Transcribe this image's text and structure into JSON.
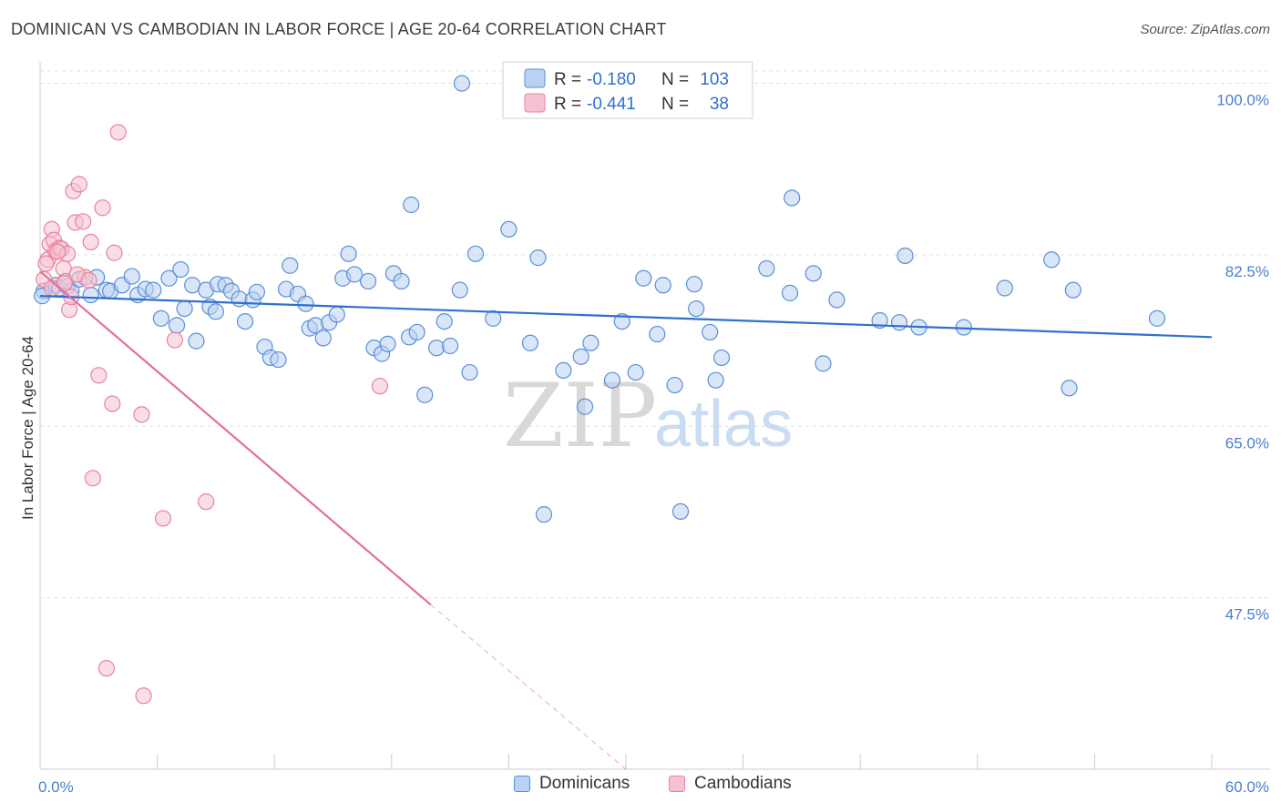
{
  "title": "DOMINICAN VS CAMBODIAN IN LABOR FORCE | AGE 20-64 CORRELATION CHART",
  "source": "Source: ZipAtlas.com",
  "watermark": {
    "zip": "ZIP",
    "atlas": "atlas"
  },
  "colors": {
    "blue": "#5b8fd6",
    "blue_fill": "#b9d1f3",
    "blue_line": "#2f6fd0",
    "pink": "#e8829f",
    "pink_fill": "#f6c2d2",
    "pink_line": "#e0709a",
    "tick_text": "#4a7fd0",
    "grid": "#e0e0e0"
  },
  "legend": {
    "rows": [
      {
        "r_label": "R =",
        "r_value": "-0.180",
        "n_label": "N =",
        "n_value": "103"
      },
      {
        "r_label": "R =",
        "r_value": "-0.441",
        "n_label": "N =",
        "n_value": "38"
      }
    ]
  },
  "bottom_legend": {
    "dominicans": "Dominicans",
    "cambodians": "Cambodians"
  },
  "chart_data": {
    "type": "scatter",
    "ylabel": "In Labor Force | Age 20-64",
    "xlim": [
      0,
      60
    ],
    "ylim": [
      30,
      102
    ],
    "x_tick_labels": [
      {
        "value": 0,
        "label": "0.0%"
      },
      {
        "value": 60,
        "label": "60.0%"
      }
    ],
    "y_tick_labels": [
      {
        "value": 100,
        "label": "100.0%"
      },
      {
        "value": 82.5,
        "label": "82.5%"
      },
      {
        "value": 65,
        "label": "65.0%"
      },
      {
        "value": 47.5,
        "label": "47.5%"
      }
    ],
    "legend_placement": "top-center",
    "series": [
      {
        "name": "Dominicans",
        "trend": {
          "x0": 0,
          "y0": 78.3,
          "x1": 60,
          "y1": 74.1
        },
        "points": [
          [
            0.2,
            78.8
          ],
          [
            0.8,
            79.4
          ],
          [
            1.0,
            79.1
          ],
          [
            1.4,
            79.3
          ],
          [
            1.6,
            78.8
          ],
          [
            2.0,
            80.0
          ],
          [
            2.6,
            78.4
          ],
          [
            2.9,
            80.2
          ],
          [
            3.4,
            78.9
          ],
          [
            3.6,
            78.8
          ],
          [
            4.2,
            79.4
          ],
          [
            4.7,
            80.3
          ],
          [
            5.0,
            78.4
          ],
          [
            5.4,
            79.0
          ],
          [
            5.8,
            78.9
          ],
          [
            6.6,
            80.1
          ],
          [
            6.2,
            76.0
          ],
          [
            7.0,
            75.3
          ],
          [
            7.4,
            77.0
          ],
          [
            7.8,
            79.4
          ],
          [
            8.0,
            73.7
          ],
          [
            8.5,
            78.9
          ],
          [
            8.7,
            77.2
          ],
          [
            9.1,
            79.5
          ],
          [
            9.5,
            79.4
          ],
          [
            9.8,
            78.8
          ],
          [
            10.2,
            78.0
          ],
          [
            10.5,
            75.7
          ],
          [
            10.9,
            77.9
          ],
          [
            11.1,
            78.7
          ],
          [
            11.5,
            73.1
          ],
          [
            11.8,
            72.0
          ],
          [
            12.2,
            71.8
          ],
          [
            12.6,
            79.0
          ],
          [
            12.8,
            81.4
          ],
          [
            13.2,
            78.5
          ],
          [
            13.6,
            77.5
          ],
          [
            13.8,
            75.0
          ],
          [
            14.1,
            75.3
          ],
          [
            14.5,
            74.0
          ],
          [
            14.8,
            75.6
          ],
          [
            15.2,
            76.4
          ],
          [
            15.5,
            80.1
          ],
          [
            15.8,
            82.6
          ],
          [
            16.1,
            80.5
          ],
          [
            16.8,
            79.8
          ],
          [
            17.1,
            73.0
          ],
          [
            17.5,
            72.4
          ],
          [
            17.8,
            73.4
          ],
          [
            18.1,
            80.6
          ],
          [
            18.5,
            79.8
          ],
          [
            18.9,
            74.1
          ],
          [
            19.3,
            74.6
          ],
          [
            19.0,
            87.6
          ],
          [
            19.7,
            68.2
          ],
          [
            20.3,
            73.0
          ],
          [
            20.7,
            75.7
          ],
          [
            21.0,
            73.2
          ],
          [
            21.5,
            78.9
          ],
          [
            21.6,
            100.0
          ],
          [
            22.0,
            70.5
          ],
          [
            22.3,
            82.6
          ],
          [
            23.2,
            76.0
          ],
          [
            24.0,
            85.1
          ],
          [
            25.1,
            73.5
          ],
          [
            25.5,
            82.2
          ],
          [
            25.8,
            56.0
          ],
          [
            26.8,
            70.7
          ],
          [
            27.7,
            72.1
          ],
          [
            28.2,
            73.5
          ],
          [
            27.9,
            67.0
          ],
          [
            29.3,
            69.7
          ],
          [
            29.8,
            75.7
          ],
          [
            30.5,
            70.5
          ],
          [
            30.9,
            80.1
          ],
          [
            31.6,
            74.4
          ],
          [
            31.9,
            79.4
          ],
          [
            32.5,
            69.2
          ],
          [
            32.8,
            56.3
          ],
          [
            33.5,
            79.5
          ],
          [
            33.6,
            77.0
          ],
          [
            34.3,
            74.6
          ],
          [
            34.6,
            69.7
          ],
          [
            34.9,
            72.0
          ],
          [
            37.2,
            81.1
          ],
          [
            38.4,
            78.6
          ],
          [
            38.5,
            88.3
          ],
          [
            39.6,
            80.6
          ],
          [
            40.1,
            71.4
          ],
          [
            40.8,
            77.9
          ],
          [
            43.0,
            75.8
          ],
          [
            44.0,
            75.6
          ],
          [
            44.3,
            82.4
          ],
          [
            45.0,
            75.1
          ],
          [
            47.3,
            75.1
          ],
          [
            49.4,
            79.1
          ],
          [
            51.8,
            82.0
          ],
          [
            52.7,
            68.9
          ],
          [
            52.9,
            78.9
          ],
          [
            57.2,
            76.0
          ],
          [
            0.1,
            78.3
          ],
          [
            7.2,
            81.0
          ],
          [
            9.0,
            76.7
          ]
        ]
      },
      {
        "name": "Cambodians",
        "trend": {
          "x0": 0,
          "y0": 80.8,
          "x1": 20,
          "y1": 46.8,
          "dash_to_x": 30,
          "dash_to_y": 30
        },
        "points": [
          [
            0.2,
            80.0
          ],
          [
            0.4,
            82.0
          ],
          [
            0.5,
            83.6
          ],
          [
            0.6,
            85.1
          ],
          [
            0.7,
            84.0
          ],
          [
            0.8,
            82.9
          ],
          [
            1.0,
            83.2
          ],
          [
            1.1,
            83.1
          ],
          [
            1.2,
            81.1
          ],
          [
            1.3,
            79.8
          ],
          [
            1.4,
            82.6
          ],
          [
            1.5,
            76.9
          ],
          [
            1.6,
            78.2
          ],
          [
            1.7,
            89.0
          ],
          [
            1.8,
            85.8
          ],
          [
            2.0,
            89.7
          ],
          [
            2.2,
            85.9
          ],
          [
            2.3,
            80.2
          ],
          [
            2.6,
            83.8
          ],
          [
            3.0,
            70.2
          ],
          [
            3.2,
            87.3
          ],
          [
            3.7,
            67.3
          ],
          [
            3.8,
            82.7
          ],
          [
            4.0,
            95.0
          ],
          [
            5.2,
            66.2
          ],
          [
            6.3,
            55.6
          ],
          [
            6.9,
            73.8
          ],
          [
            8.5,
            57.3
          ],
          [
            17.4,
            69.1
          ],
          [
            3.4,
            40.3
          ],
          [
            5.3,
            37.5
          ],
          [
            2.7,
            59.7
          ],
          [
            0.3,
            81.6
          ],
          [
            0.9,
            82.8
          ],
          [
            1.9,
            80.5
          ],
          [
            0.6,
            79.1
          ],
          [
            1.25,
            79.6
          ],
          [
            2.5,
            79.9
          ]
        ]
      }
    ]
  }
}
